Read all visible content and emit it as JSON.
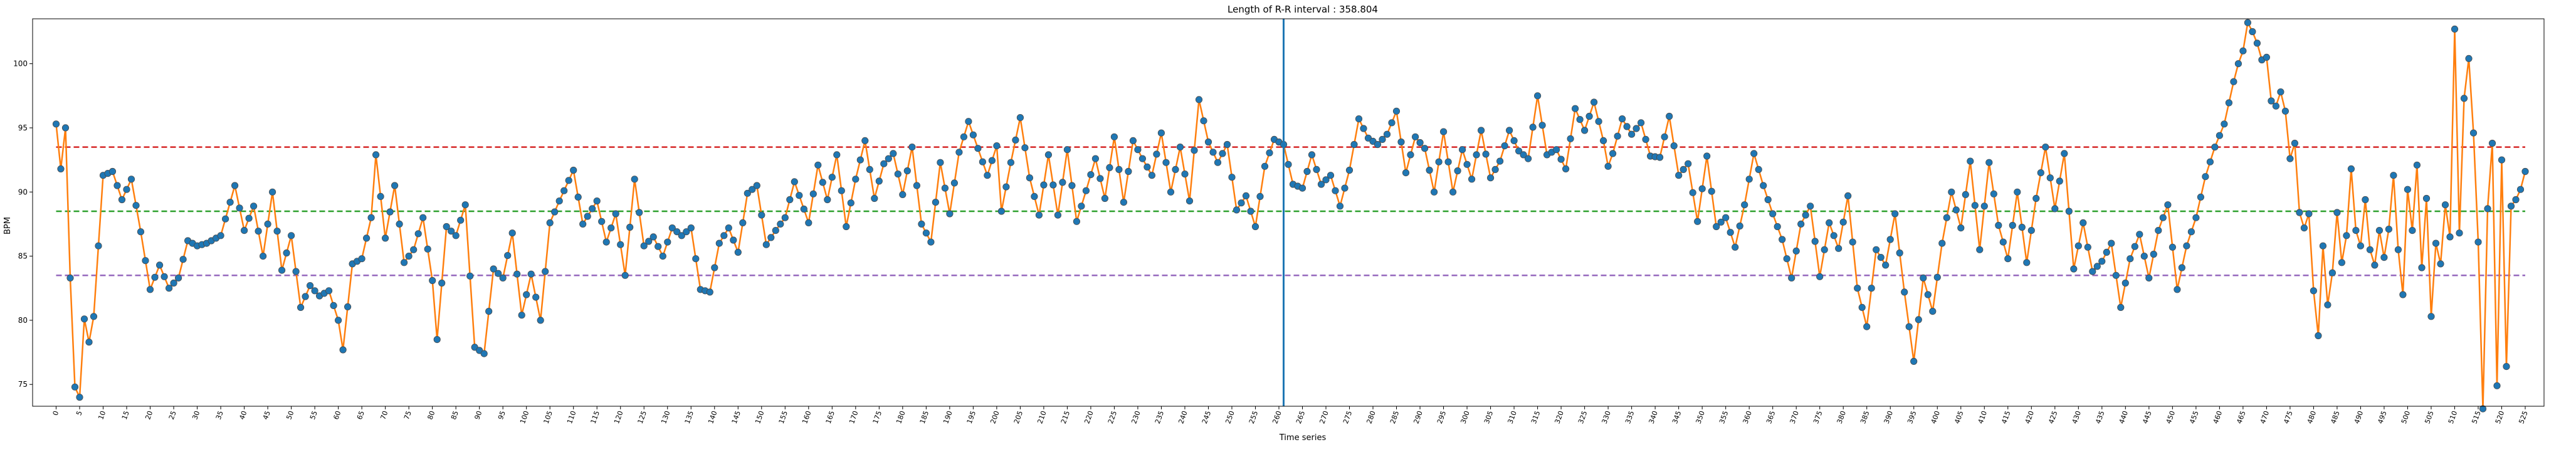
{
  "chart_data": {
    "type": "line",
    "title": "Length of R-R interval : 358.804",
    "xlabel": "Time series",
    "ylabel": "BPM",
    "xlim": [
      -5,
      529
    ],
    "ylim": [
      73.3,
      103.5
    ],
    "y_ticks": [
      75,
      80,
      85,
      90,
      95,
      100
    ],
    "x_tick_step": 5,
    "x_tick_max": 525,
    "grid": false,
    "legend": "none",
    "colors": {
      "line": "#ff7f0e",
      "markers": "#1f77b4",
      "vline": "#1f77b4",
      "upper": "#d62728",
      "mean": "#2ca02c",
      "lower": "#9467bd"
    },
    "reference_lines": {
      "upper": 93.5,
      "mean": 88.5,
      "lower": 83.5
    },
    "vertical_line_x": 261,
    "anchors": [
      [
        0,
        95.3
      ],
      [
        1,
        91.8
      ],
      [
        2,
        95.0
      ],
      [
        3,
        83.3
      ],
      [
        4,
        74.8
      ],
      [
        5,
        74.0
      ],
      [
        6,
        80.1
      ],
      [
        7,
        78.3
      ],
      [
        8,
        80.3
      ],
      [
        9,
        85.8
      ],
      [
        10,
        91.3
      ],
      [
        12,
        91.6
      ],
      [
        14,
        89.4
      ],
      [
        16,
        91.0
      ],
      [
        18,
        86.9
      ],
      [
        20,
        82.4
      ],
      [
        22,
        84.3
      ],
      [
        24,
        82.5
      ],
      [
        26,
        83.3
      ],
      [
        28,
        86.2
      ],
      [
        30,
        85.8
      ],
      [
        32,
        86.0
      ],
      [
        35,
        86.6
      ],
      [
        38,
        90.5
      ],
      [
        40,
        87.0
      ],
      [
        42,
        88.9
      ],
      [
        44,
        85.0
      ],
      [
        46,
        90.0
      ],
      [
        48,
        83.9
      ],
      [
        50,
        86.6
      ],
      [
        52,
        81.0
      ],
      [
        54,
        82.7
      ],
      [
        56,
        81.9
      ],
      [
        58,
        82.3
      ],
      [
        60,
        80.0
      ],
      [
        61,
        77.7
      ],
      [
        63,
        84.4
      ],
      [
        65,
        84.8
      ],
      [
        67,
        88.0
      ],
      [
        68,
        92.9
      ],
      [
        70,
        86.4
      ],
      [
        72,
        90.5
      ],
      [
        74,
        84.5
      ],
      [
        76,
        85.5
      ],
      [
        78,
        88.0
      ],
      [
        80,
        83.1
      ],
      [
        81,
        78.5
      ],
      [
        83,
        87.3
      ],
      [
        85,
        86.6
      ],
      [
        87,
        89.0
      ],
      [
        89,
        77.9
      ],
      [
        91,
        77.4
      ],
      [
        93,
        84.0
      ],
      [
        95,
        83.3
      ],
      [
        97,
        86.8
      ],
      [
        99,
        80.4
      ],
      [
        101,
        83.6
      ],
      [
        103,
        80.0
      ],
      [
        105,
        87.6
      ],
      [
        107,
        89.3
      ],
      [
        110,
        91.7
      ],
      [
        112,
        87.5
      ],
      [
        115,
        89.3
      ],
      [
        117,
        86.1
      ],
      [
        119,
        88.3
      ],
      [
        121,
        83.5
      ],
      [
        123,
        91.0
      ],
      [
        125,
        85.8
      ],
      [
        127,
        86.5
      ],
      [
        129,
        85.0
      ],
      [
        131,
        87.2
      ],
      [
        133,
        86.6
      ],
      [
        135,
        87.2
      ],
      [
        137,
        82.4
      ],
      [
        139,
        82.2
      ],
      [
        141,
        86.0
      ],
      [
        143,
        87.2
      ],
      [
        145,
        85.3
      ],
      [
        147,
        89.9
      ],
      [
        149,
        90.5
      ],
      [
        151,
        85.9
      ],
      [
        153,
        87.0
      ],
      [
        155,
        88.0
      ],
      [
        157,
        90.8
      ],
      [
        160,
        87.6
      ],
      [
        162,
        92.1
      ],
      [
        164,
        89.4
      ],
      [
        166,
        92.9
      ],
      [
        168,
        87.3
      ],
      [
        170,
        91.0
      ],
      [
        172,
        94.0
      ],
      [
        174,
        89.5
      ],
      [
        176,
        92.2
      ],
      [
        178,
        93.0
      ],
      [
        180,
        89.8
      ],
      [
        182,
        93.5
      ],
      [
        184,
        87.5
      ],
      [
        186,
        86.1
      ],
      [
        188,
        92.3
      ],
      [
        190,
        88.3
      ],
      [
        192,
        93.1
      ],
      [
        194,
        95.5
      ],
      [
        196,
        93.4
      ],
      [
        198,
        91.3
      ],
      [
        200,
        93.6
      ],
      [
        201,
        88.5
      ],
      [
        203,
        92.3
      ],
      [
        205,
        95.8
      ],
      [
        207,
        91.1
      ],
      [
        209,
        88.2
      ],
      [
        211,
        92.9
      ],
      [
        213,
        88.2
      ],
      [
        215,
        93.3
      ],
      [
        217,
        87.7
      ],
      [
        219,
        90.1
      ],
      [
        221,
        92.6
      ],
      [
        223,
        89.5
      ],
      [
        225,
        94.3
      ],
      [
        227,
        89.2
      ],
      [
        229,
        94.0
      ],
      [
        231,
        92.6
      ],
      [
        233,
        91.3
      ],
      [
        235,
        94.6
      ],
      [
        237,
        90.0
      ],
      [
        239,
        93.5
      ],
      [
        241,
        89.3
      ],
      [
        243,
        97.2
      ],
      [
        245,
        93.9
      ],
      [
        247,
        92.3
      ],
      [
        249,
        93.7
      ],
      [
        251,
        88.6
      ],
      [
        253,
        89.7
      ],
      [
        255,
        87.3
      ],
      [
        257,
        92.0
      ],
      [
        259,
        94.1
      ],
      [
        261,
        93.7
      ],
      [
        263,
        90.6
      ],
      [
        265,
        90.3
      ],
      [
        267,
        92.9
      ],
      [
        269,
        90.6
      ],
      [
        271,
        91.3
      ],
      [
        273,
        88.9
      ],
      [
        275,
        91.7
      ],
      [
        277,
        95.7
      ],
      [
        279,
        94.2
      ],
      [
        281,
        93.7
      ],
      [
        283,
        94.5
      ],
      [
        285,
        96.3
      ],
      [
        287,
        91.5
      ],
      [
        289,
        94.3
      ],
      [
        291,
        93.4
      ],
      [
        293,
        90.0
      ],
      [
        295,
        94.7
      ],
      [
        297,
        90.0
      ],
      [
        299,
        93.3
      ],
      [
        301,
        91.0
      ],
      [
        303,
        94.8
      ],
      [
        305,
        91.1
      ],
      [
        307,
        92.4
      ],
      [
        309,
        94.8
      ],
      [
        311,
        93.2
      ],
      [
        313,
        92.6
      ],
      [
        315,
        97.5
      ],
      [
        317,
        92.9
      ],
      [
        319,
        93.3
      ],
      [
        321,
        91.8
      ],
      [
        323,
        96.5
      ],
      [
        325,
        94.8
      ],
      [
        327,
        97.0
      ],
      [
        329,
        94.0
      ],
      [
        330,
        92.0
      ],
      [
        331,
        93.0
      ],
      [
        333,
        95.7
      ],
      [
        335,
        94.5
      ],
      [
        337,
        95.4
      ],
      [
        339,
        92.8
      ],
      [
        341,
        92.7
      ],
      [
        343,
        95.9
      ],
      [
        345,
        91.3
      ],
      [
        347,
        92.2
      ],
      [
        349,
        87.7
      ],
      [
        351,
        92.8
      ],
      [
        353,
        87.3
      ],
      [
        355,
        88.0
      ],
      [
        357,
        85.7
      ],
      [
        359,
        89.0
      ],
      [
        361,
        93.0
      ],
      [
        363,
        90.5
      ],
      [
        365,
        88.3
      ],
      [
        367,
        86.3
      ],
      [
        369,
        83.3
      ],
      [
        371,
        87.5
      ],
      [
        373,
        88.9
      ],
      [
        375,
        83.4
      ],
      [
        377,
        87.6
      ],
      [
        379,
        85.6
      ],
      [
        381,
        89.7
      ],
      [
        383,
        82.5
      ],
      [
        385,
        79.5
      ],
      [
        387,
        85.5
      ],
      [
        389,
        84.3
      ],
      [
        391,
        88.3
      ],
      [
        393,
        82.2
      ],
      [
        395,
        76.8
      ],
      [
        397,
        83.3
      ],
      [
        399,
        80.7
      ],
      [
        401,
        86.0
      ],
      [
        403,
        90.0
      ],
      [
        405,
        87.2
      ],
      [
        407,
        92.4
      ],
      [
        409,
        85.5
      ],
      [
        411,
        92.3
      ],
      [
        413,
        87.4
      ],
      [
        415,
        84.8
      ],
      [
        417,
        90.0
      ],
      [
        419,
        84.5
      ],
      [
        421,
        89.5
      ],
      [
        423,
        93.5
      ],
      [
        425,
        88.7
      ],
      [
        427,
        93.0
      ],
      [
        429,
        84.0
      ],
      [
        431,
        87.6
      ],
      [
        433,
        83.8
      ],
      [
        435,
        84.6
      ],
      [
        437,
        86.0
      ],
      [
        439,
        81.0
      ],
      [
        441,
        84.8
      ],
      [
        443,
        86.7
      ],
      [
        445,
        83.3
      ],
      [
        447,
        87.0
      ],
      [
        449,
        89.0
      ],
      [
        451,
        82.4
      ],
      [
        453,
        85.8
      ],
      [
        455,
        88.0
      ],
      [
        457,
        91.2
      ],
      [
        459,
        93.5
      ],
      [
        461,
        95.3
      ],
      [
        463,
        98.6
      ],
      [
        464,
        100.0
      ],
      [
        465,
        101.0
      ],
      [
        466,
        103.2
      ],
      [
        467,
        102.5
      ],
      [
        468,
        101.6
      ],
      [
        469,
        100.3
      ],
      [
        470,
        100.5
      ],
      [
        471,
        97.1
      ],
      [
        472,
        96.7
      ],
      [
        473,
        97.8
      ],
      [
        474,
        96.3
      ],
      [
        475,
        92.6
      ],
      [
        476,
        93.8
      ],
      [
        477,
        88.4
      ],
      [
        478,
        87.2
      ],
      [
        479,
        88.3
      ],
      [
        480,
        82.3
      ],
      [
        481,
        78.8
      ],
      [
        482,
        85.8
      ],
      [
        483,
        81.2
      ],
      [
        484,
        83.7
      ],
      [
        485,
        88.4
      ],
      [
        486,
        84.5
      ],
      [
        487,
        86.6
      ],
      [
        488,
        91.8
      ],
      [
        489,
        87.0
      ],
      [
        490,
        85.8
      ],
      [
        491,
        89.4
      ],
      [
        492,
        85.5
      ],
      [
        493,
        84.3
      ],
      [
        494,
        87.0
      ],
      [
        495,
        84.9
      ],
      [
        496,
        87.1
      ],
      [
        497,
        91.3
      ],
      [
        498,
        85.5
      ],
      [
        499,
        82.0
      ],
      [
        500,
        90.2
      ],
      [
        501,
        87.0
      ],
      [
        502,
        92.1
      ],
      [
        503,
        84.1
      ],
      [
        504,
        89.5
      ],
      [
        505,
        80.3
      ],
      [
        506,
        86.0
      ],
      [
        507,
        84.4
      ],
      [
        508,
        89.0
      ],
      [
        509,
        86.5
      ],
      [
        510,
        102.7
      ],
      [
        511,
        86.8
      ],
      [
        512,
        97.3
      ],
      [
        513,
        100.4
      ],
      [
        514,
        94.6
      ],
      [
        515,
        86.1
      ],
      [
        516,
        73.1
      ],
      [
        517,
        88.7
      ],
      [
        518,
        93.8
      ],
      [
        519,
        74.9
      ],
      [
        520,
        92.5
      ],
      [
        521,
        76.4
      ],
      [
        522,
        88.9
      ],
      [
        523,
        89.4
      ],
      [
        524,
        90.2
      ],
      [
        525,
        91.6
      ]
    ]
  }
}
